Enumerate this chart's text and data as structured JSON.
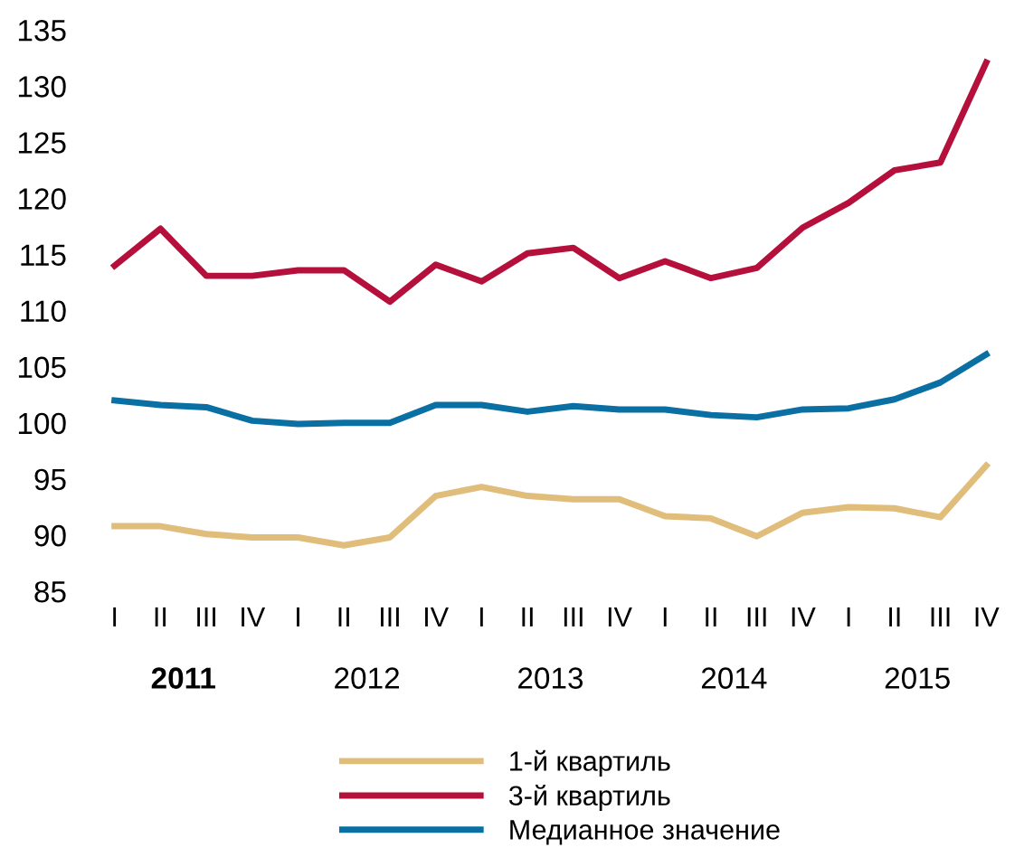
{
  "chart_data": {
    "type": "line",
    "categories": [
      "I",
      "II",
      "III",
      "IV",
      "I",
      "II",
      "III",
      "IV",
      "I",
      "II",
      "III",
      "IV",
      "I",
      "II",
      "III",
      "IV",
      "I",
      "II",
      "III",
      "IV"
    ],
    "series": [
      {
        "name": "1-й квартиль",
        "color": "#e0bd7a",
        "values": [
          90.8,
          90.8,
          90.1,
          89.8,
          89.8,
          89.1,
          89.8,
          93.5,
          94.3,
          93.5,
          93.2,
          93.2,
          91.7,
          91.5,
          89.9,
          92.0,
          92.5,
          92.4,
          91.6,
          96.2
        ]
      },
      {
        "name": "3-й квартиль",
        "color": "#b5103c",
        "values": [
          114.0,
          117.3,
          113.1,
          113.1,
          113.6,
          113.6,
          110.8,
          114.1,
          112.6,
          115.1,
          115.6,
          112.9,
          114.4,
          112.9,
          113.8,
          117.4,
          119.6,
          122.5,
          123.2,
          132.1
        ]
      },
      {
        "name": "Медианное значение",
        "color": "#0a6fa3",
        "values": [
          102.0,
          101.6,
          101.4,
          100.2,
          99.9,
          100.0,
          100.0,
          101.6,
          101.6,
          101.0,
          101.5,
          101.2,
          101.2,
          100.7,
          100.5,
          101.2,
          101.3,
          102.1,
          103.6,
          106.1
        ]
      }
    ],
    "annotations": [
      "2011",
      "2012",
      "2013",
      "2014",
      "2015"
    ],
    "ylim": [
      85,
      135
    ],
    "yticks": [
      85,
      90,
      95,
      100,
      105,
      110,
      115,
      120,
      125,
      130,
      135
    ],
    "grid": false,
    "legend": "bottom",
    "marker": "none",
    "line_style": "solid"
  }
}
